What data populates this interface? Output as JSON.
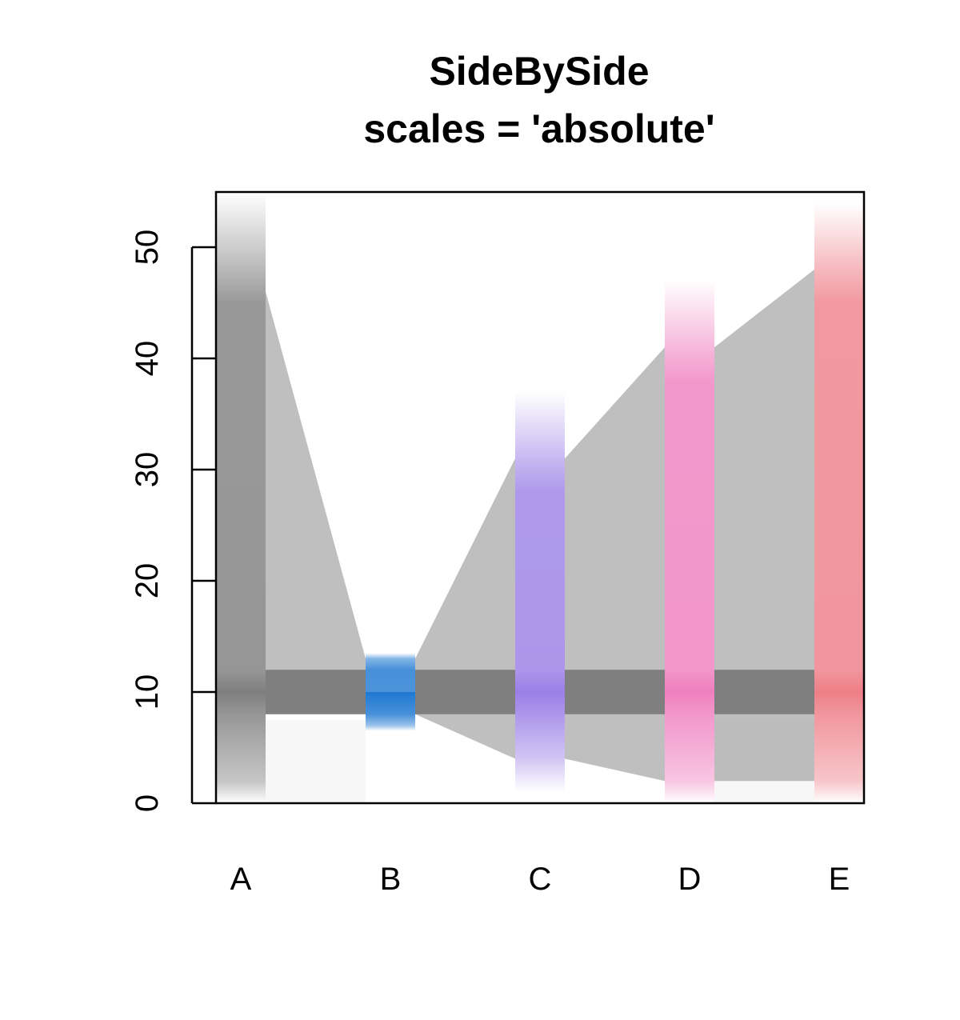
{
  "chart_data": {
    "type": "parallel-coordinates-density",
    "title": "SideBySide",
    "subtitle": "scales = 'absolute'",
    "categories": [
      "A",
      "B",
      "C",
      "D",
      "E"
    ],
    "ylim": [
      0,
      55
    ],
    "yticks": [
      0,
      10,
      20,
      30,
      40,
      50
    ],
    "grid": false,
    "legend": "none",
    "axes": [
      {
        "name": "A",
        "color": "#7f7f7f",
        "core": [
          8,
          12
        ],
        "band": [
          2,
          48
        ],
        "tail": [
          0,
          55
        ],
        "peak": 10
      },
      {
        "name": "B",
        "color": "#1f78d1",
        "core": [
          8,
          12
        ],
        "band": [
          7,
          13
        ],
        "tail": [
          6.5,
          13.5
        ],
        "peak": 10
      },
      {
        "name": "C",
        "color": "#9b7fe6",
        "core": [
          8,
          12
        ],
        "band": [
          4,
          31
        ],
        "tail": [
          1,
          37
        ],
        "peak": 10
      },
      {
        "name": "D",
        "color": "#ef7fbf",
        "core": [
          8,
          12
        ],
        "band": [
          2,
          41
        ],
        "tail": [
          0,
          47
        ],
        "peak": 10
      },
      {
        "name": "E",
        "color": "#ee7f88",
        "core": [
          8,
          12
        ],
        "band": [
          2,
          48
        ],
        "tail": [
          0,
          54
        ],
        "peak": 10
      }
    ],
    "connections": [
      {
        "from": "A",
        "to": "B",
        "from_range": [
          8,
          46
        ],
        "to_range": [
          8,
          13
        ]
      },
      {
        "from": "B",
        "to": "C",
        "from_range": [
          8,
          13
        ],
        "to_range": [
          4,
          31
        ]
      },
      {
        "from": "C",
        "to": "D",
        "from_range": [
          4,
          31
        ],
        "to_range": [
          2,
          41
        ]
      },
      {
        "from": "D",
        "to": "E",
        "from_range": [
          2,
          41
        ],
        "to_range": [
          2,
          48
        ]
      }
    ]
  }
}
